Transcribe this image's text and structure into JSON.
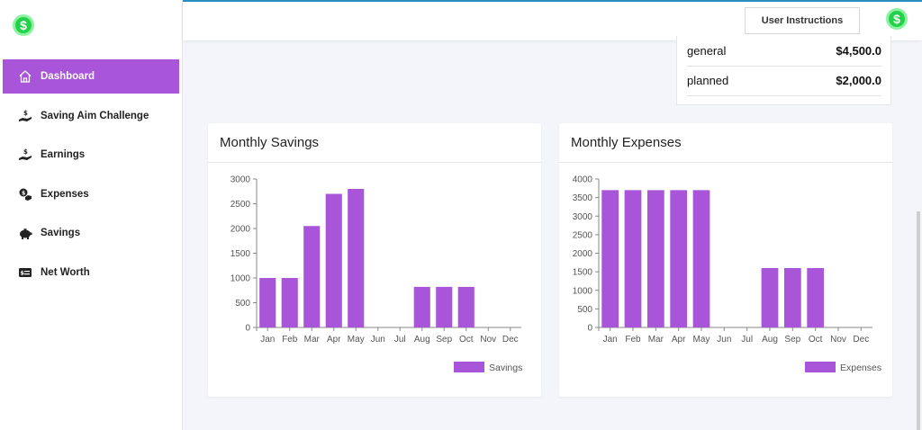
{
  "app": {
    "logo_icon": "dollar-coin-icon",
    "logo_symbol": "$"
  },
  "sidebar": {
    "items": [
      {
        "label": "Dashboard",
        "icon": "home-icon",
        "active": true
      },
      {
        "label": "Saving Aim Challenge",
        "icon": "hand-dollar-icon"
      },
      {
        "label": "Earnings",
        "icon": "hand-dollar-icon"
      },
      {
        "label": "Expenses",
        "icon": "coins-icon"
      },
      {
        "label": "Savings",
        "icon": "piggy-bank-icon"
      },
      {
        "label": "Net Worth",
        "icon": "id-card-icon"
      }
    ]
  },
  "header": {
    "user_instructions_label": "User Instructions"
  },
  "summary": {
    "rows": [
      {
        "label": "general",
        "amount": "$4,500.0"
      },
      {
        "label": "planned",
        "amount": "$2,000.0"
      }
    ]
  },
  "colors": {
    "accent": "#a855d9",
    "logo_green": "#23d24a"
  },
  "chart_data": [
    {
      "type": "bar",
      "title": "Monthly Savings",
      "categories": [
        "Jan",
        "Feb",
        "Mar",
        "Apr",
        "May",
        "Jun",
        "Jul",
        "Aug",
        "Sep",
        "Oct",
        "Nov",
        "Dec"
      ],
      "series": [
        {
          "name": "Savings",
          "values": [
            1000,
            1000,
            2050,
            2700,
            2800,
            0,
            0,
            820,
            820,
            820,
            0,
            0
          ]
        }
      ],
      "ylim": [
        0,
        3000
      ],
      "yticks": [
        0,
        500,
        1000,
        1500,
        2000,
        2500,
        3000
      ],
      "legend": "bottom-right"
    },
    {
      "type": "bar",
      "title": "Monthly Expenses",
      "categories": [
        "Jan",
        "Feb",
        "Mar",
        "Apr",
        "May",
        "Jun",
        "Jul",
        "Aug",
        "Sep",
        "Oct",
        "Nov",
        "Dec"
      ],
      "series": [
        {
          "name": "Expenses",
          "values": [
            3700,
            3700,
            3700,
            3700,
            3700,
            0,
            0,
            1600,
            1600,
            1600,
            0,
            0
          ]
        }
      ],
      "ylim": [
        0,
        4000
      ],
      "yticks": [
        0,
        500,
        1000,
        1500,
        2000,
        2500,
        3000,
        3500,
        4000
      ],
      "legend": "bottom-right"
    }
  ]
}
